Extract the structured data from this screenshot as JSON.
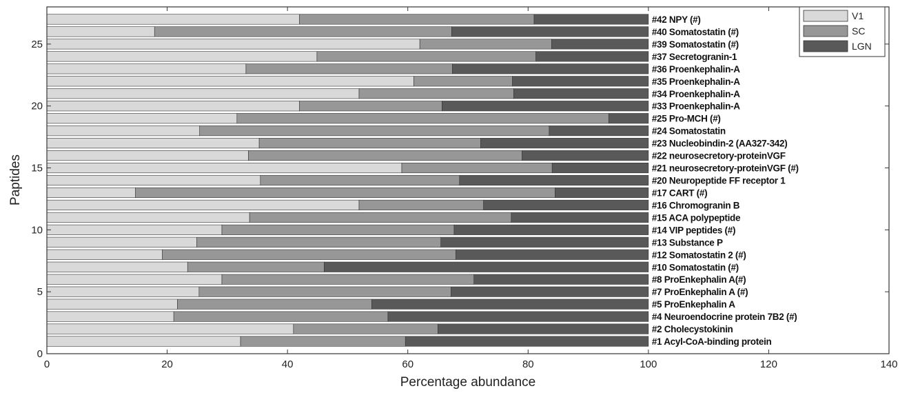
{
  "chart_data": {
    "type": "bar",
    "orientation": "horizontal",
    "stacked": true,
    "title": "",
    "xlabel": "Percentage  abundance",
    "ylabel": "Paptides",
    "xlim": [
      0,
      140
    ],
    "ylim": [
      0,
      28
    ],
    "x_ticks": [
      "0",
      "20",
      "40",
      "60",
      "80",
      "100",
      "120",
      "140"
    ],
    "y_ticks": [
      "0",
      "5",
      "10",
      "15",
      "20",
      "25"
    ],
    "grid": false,
    "legend_position": "top-right",
    "categories": [
      "#1    Acyl-CoA-binding protein",
      "#2    Cholecystokinin",
      "#4    Neuroendocrine protein 7B2  (#)",
      "#5    ProEnkephalin A",
      "#7    ProEnkephalin A (#)",
      "#8    ProEnkephalin A(#)",
      "#10 Somatostatin (#)",
      "#12 Somatostatin 2 (#)",
      "#13 Substance P",
      "#14 VIP peptides (#)",
      "#15 ACA polypeptide",
      "#16 Chromogranin B",
      "#17 CART (#)",
      "#20 Neuropeptide FF receptor 1",
      "#21 neurosecretory-proteinVGF (#)",
      "#22 neurosecretory-proteinVGF",
      "#23 Nucleobindin-2 (AA327-342)",
      "#24 Somatostatin",
      "#25 Pro-MCH (#)",
      "#33 Proenkephalin-A",
      "#34 Proenkephalin-A",
      "#35 Proenkephalin-A",
      "#36 Proenkephalin-A",
      "#37 Secretogranin-1",
      "#39 Somatostatin (#)",
      "#40 Somatostatin (#)",
      "#42 NPY (#)"
    ],
    "series": [
      {
        "name": "V1",
        "color": "#d9d9d9",
        "values": [
          32.2,
          41,
          21.1,
          21.7,
          25.3,
          29.1,
          23.4,
          19.2,
          24.9,
          29.1,
          33.7,
          51.9,
          14.7,
          35.5,
          59,
          33.5,
          35.3,
          25.4,
          31.6,
          42,
          51.9,
          61,
          33.1,
          44.9,
          62,
          17.9,
          42
        ]
      },
      {
        "name": "SC",
        "color": "#979797",
        "values": [
          27.4,
          24,
          35.6,
          32.3,
          41.9,
          41.9,
          22.7,
          48.8,
          40.6,
          38.6,
          43.5,
          20.7,
          69.8,
          33.1,
          25,
          45.5,
          36.8,
          58.1,
          61.8,
          23.7,
          25.7,
          16.4,
          34.3,
          36.4,
          21.9,
          49.4,
          39
        ]
      },
      {
        "name": "LGN",
        "color": "#595959",
        "values": [
          40.4,
          35,
          43.3,
          46,
          32.8,
          29,
          53.9,
          32,
          34.5,
          32.3,
          22.8,
          27.4,
          15.5,
          31.4,
          16,
          21,
          27.9,
          16.5,
          6.6,
          34.3,
          22.4,
          22.6,
          32.6,
          18.7,
          16.1,
          32.7,
          19
        ]
      }
    ]
  }
}
